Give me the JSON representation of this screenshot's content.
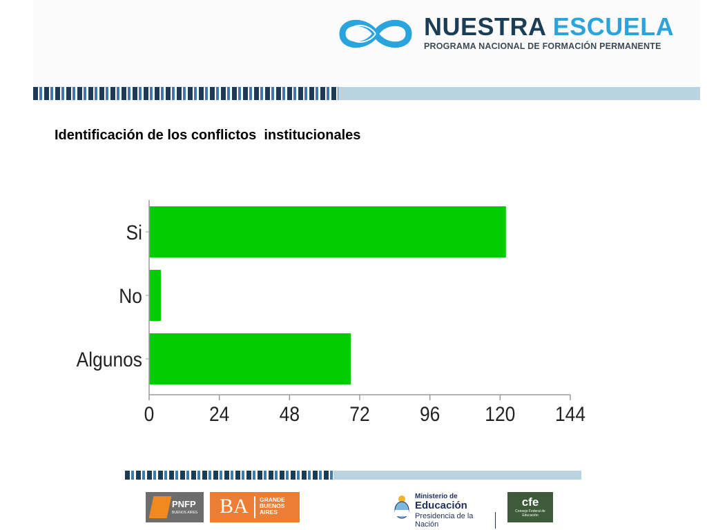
{
  "brand": {
    "word1": "NUESTRA",
    "word2": "ESCUELA",
    "subtitle": "PROGRAMA NACIONAL DE FORMACIÓN PERMANENTE",
    "colors": {
      "dark": "#1c3d56",
      "light": "#2aa4dc",
      "stripe_dark": "#1d3a57",
      "stripe_light": "#b9d3e0"
    }
  },
  "page": {
    "title": "Identificación de los conflictos  institucionales"
  },
  "chart_data": {
    "type": "bar",
    "orientation": "horizontal",
    "categories": [
      "Si",
      "No",
      "Algunos"
    ],
    "values": [
      122,
      4,
      69
    ],
    "xlim": [
      0,
      144
    ],
    "xticks": [
      "0",
      "24",
      "48",
      "72",
      "96",
      "120",
      "144"
    ],
    "bar_color": "#00cc00",
    "grid": false,
    "legend": "none"
  },
  "footer": {
    "pnfp": {
      "label": "PNFP",
      "sub": "BUENOS AIRES"
    },
    "ba": {
      "label": "BA",
      "sub": "GRANDE BUENOS AIRES"
    },
    "ministerio": {
      "line1": "Ministerio de",
      "line2": "Educación",
      "line3": "Presidencia de la Nación"
    },
    "cfe": {
      "label": "cfe",
      "sub": "Consejo Federal de Educación"
    }
  }
}
